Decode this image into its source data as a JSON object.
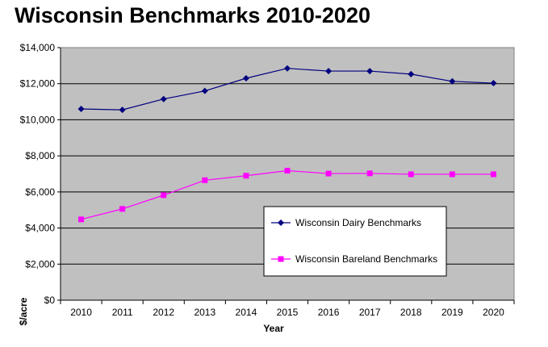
{
  "chart_data": {
    "type": "line",
    "title": "Wisconsin Benchmarks 2010-2020",
    "xlabel": "Year",
    "ylabel": "$/acre",
    "categories": [
      "2010",
      "2011",
      "2012",
      "2013",
      "2014",
      "2015",
      "2016",
      "2017",
      "2018",
      "2019",
      "2020"
    ],
    "ylim": [
      0,
      14000
    ],
    "yticks": [
      0,
      2000,
      4000,
      6000,
      8000,
      10000,
      12000,
      14000
    ],
    "ytick_labels": [
      "$0",
      "$2,000",
      "$4,000",
      "$6,000",
      "$8,000",
      "$10,000",
      "$12,000",
      "$14,000"
    ],
    "grid": true,
    "legend_position": "lower-right",
    "plot_background": "#c0c0c0",
    "series": [
      {
        "name": "Wisconsin Dairy Benchmarks",
        "color": "#000080",
        "marker": "diamond",
        "values": [
          10600,
          10550,
          11150,
          11600,
          12300,
          12850,
          12700,
          12700,
          12530,
          12130,
          12030
        ]
      },
      {
        "name": "Wisconsin Bareland Benchmarks",
        "color": "#ff00ff",
        "marker": "square",
        "values": [
          4480,
          5060,
          5820,
          6650,
          6900,
          7180,
          7020,
          7030,
          6980,
          6980,
          6980
        ]
      }
    ]
  }
}
